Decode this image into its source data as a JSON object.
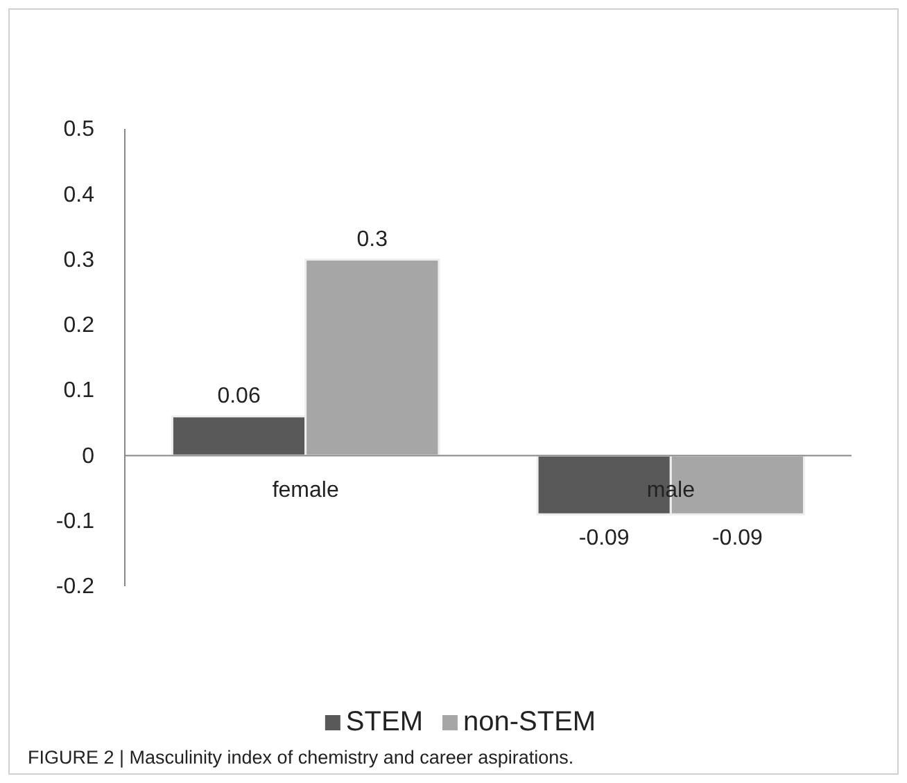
{
  "chart_data": {
    "type": "bar",
    "categories": [
      "female",
      "male"
    ],
    "series": [
      {
        "name": "STEM",
        "color": "#595959",
        "values": [
          0.06,
          -0.09
        ]
      },
      {
        "name": "non-STEM",
        "color": "#a6a6a6",
        "values": [
          0.3,
          -0.09
        ]
      }
    ],
    "ylim": [
      -0.2,
      0.5
    ],
    "yticks": [
      -0.2,
      -0.1,
      0,
      0.1,
      0.2,
      0.3,
      0.4,
      0.5
    ],
    "data_labels": true,
    "legend": "bottom",
    "grid": false,
    "annotations": [
      "FIGURE 2 | Masculinity index of chemistry and career aspirations."
    ]
  }
}
